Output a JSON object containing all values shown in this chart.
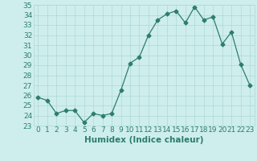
{
  "x": [
    0,
    1,
    2,
    3,
    4,
    5,
    6,
    7,
    8,
    9,
    10,
    11,
    12,
    13,
    14,
    15,
    16,
    17,
    18,
    19,
    20,
    21,
    22,
    23
  ],
  "y": [
    25.8,
    25.5,
    24.2,
    24.5,
    24.5,
    23.3,
    24.2,
    24.0,
    24.2,
    26.5,
    29.2,
    29.8,
    32.0,
    33.5,
    34.1,
    34.4,
    33.2,
    34.8,
    33.5,
    33.8,
    31.1,
    32.3,
    29.1,
    27.0
  ],
  "line_color": "#2d7d6d",
  "marker": "D",
  "marker_size": 2.5,
  "bg_color": "#ceeeed",
  "grid_color": "#aed8d5",
  "xlabel": "Humidex (Indice chaleur)",
  "xlim": [
    -0.5,
    23.5
  ],
  "ylim": [
    23,
    35
  ],
  "yticks": [
    23,
    24,
    25,
    26,
    27,
    28,
    29,
    30,
    31,
    32,
    33,
    34,
    35
  ],
  "xticks": [
    0,
    1,
    2,
    3,
    4,
    5,
    6,
    7,
    8,
    9,
    10,
    11,
    12,
    13,
    14,
    15,
    16,
    17,
    18,
    19,
    20,
    21,
    22,
    23
  ],
  "tick_fontsize": 6.5,
  "label_fontsize": 7.5
}
